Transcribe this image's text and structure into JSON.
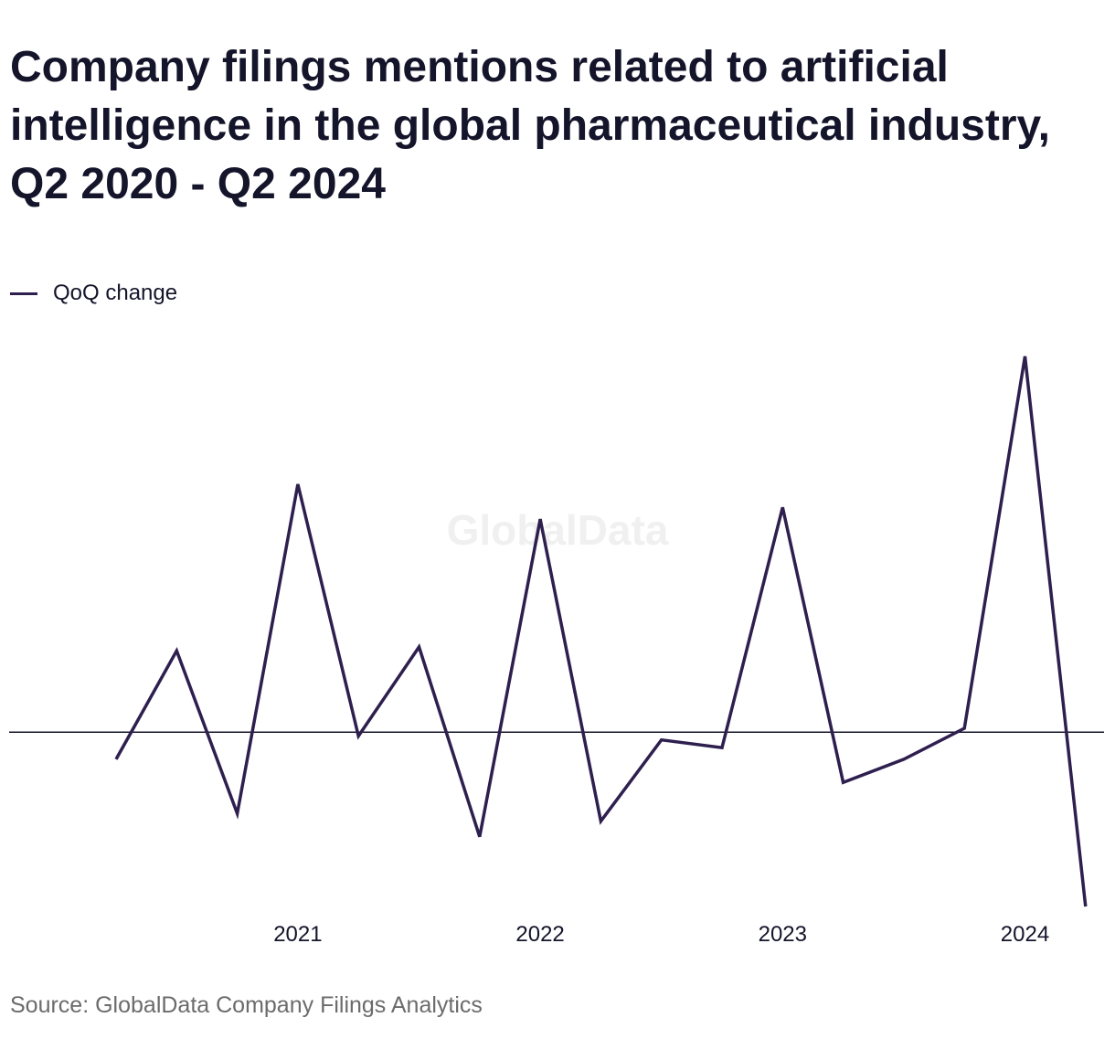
{
  "chart_data": {
    "type": "line",
    "title": "Company filings mentions related to artificial intelligence in the global pharmaceutical industry, Q2 2020 - Q2 2024",
    "x": [
      "Q2 2020",
      "Q3 2020",
      "Q4 2020",
      "Q1 2021",
      "Q2 2021",
      "Q3 2021",
      "Q4 2021",
      "Q1 2022",
      "Q2 2022",
      "Q3 2022",
      "Q4 2022",
      "Q1 2023",
      "Q2 2023",
      "Q3 2023",
      "Q4 2023",
      "Q1 2024",
      "Q2 2024"
    ],
    "series": [
      {
        "name": "QoQ change",
        "color": "#2e1f4f",
        "values": [
          -0.07,
          0.21,
          -0.21,
          0.64,
          -0.01,
          0.22,
          -0.27,
          0.55,
          -0.23,
          -0.02,
          -0.04,
          0.58,
          -0.13,
          -0.07,
          0.01,
          0.97,
          -0.45
        ]
      }
    ],
    "x_tick_labels": [
      "2021",
      "2022",
      "2023",
      "2024"
    ],
    "x_tick_index": [
      3,
      7,
      11,
      15
    ],
    "ylim": [
      -0.45,
      0.97
    ],
    "zero_line": true,
    "grid": false,
    "legend": "top-left",
    "xlabel": "",
    "ylabel": ""
  },
  "watermark": "GlobalData",
  "source": "Source: GlobalData Company Filings Analytics"
}
